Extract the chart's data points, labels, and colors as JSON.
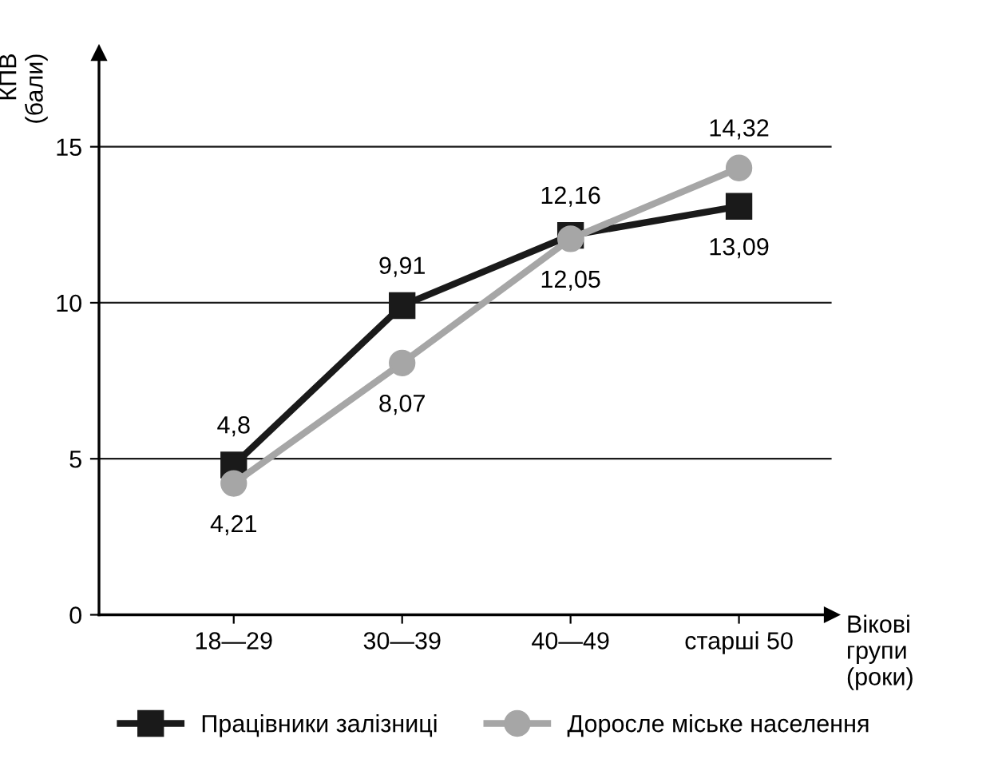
{
  "chart_data": {
    "type": "line",
    "categories": [
      "18—29",
      "30—39",
      "40—49",
      "старші 50"
    ],
    "series": [
      {
        "name": "Працівники залізниці",
        "color": "#1a1a1a",
        "marker": "square",
        "values": [
          4.8,
          9.91,
          12.16,
          13.09
        ],
        "value_labels": [
          "4,8",
          "9,91",
          "12,16",
          "13,09"
        ]
      },
      {
        "name": "Доросле міське населення",
        "color": "#a6a6a6",
        "marker": "circle",
        "values": [
          4.21,
          8.07,
          12.05,
          14.32
        ],
        "value_labels": [
          "4,21",
          "8,07",
          "12,05",
          "14,32"
        ]
      }
    ],
    "ylabel": "КПВ\n(бали)",
    "xlabel": "Вікові\nгрупи\n(роки)",
    "ylim": [
      0,
      18
    ],
    "yticks": [
      0,
      5,
      10,
      15
    ],
    "grid": "y",
    "legend": "bottom"
  }
}
